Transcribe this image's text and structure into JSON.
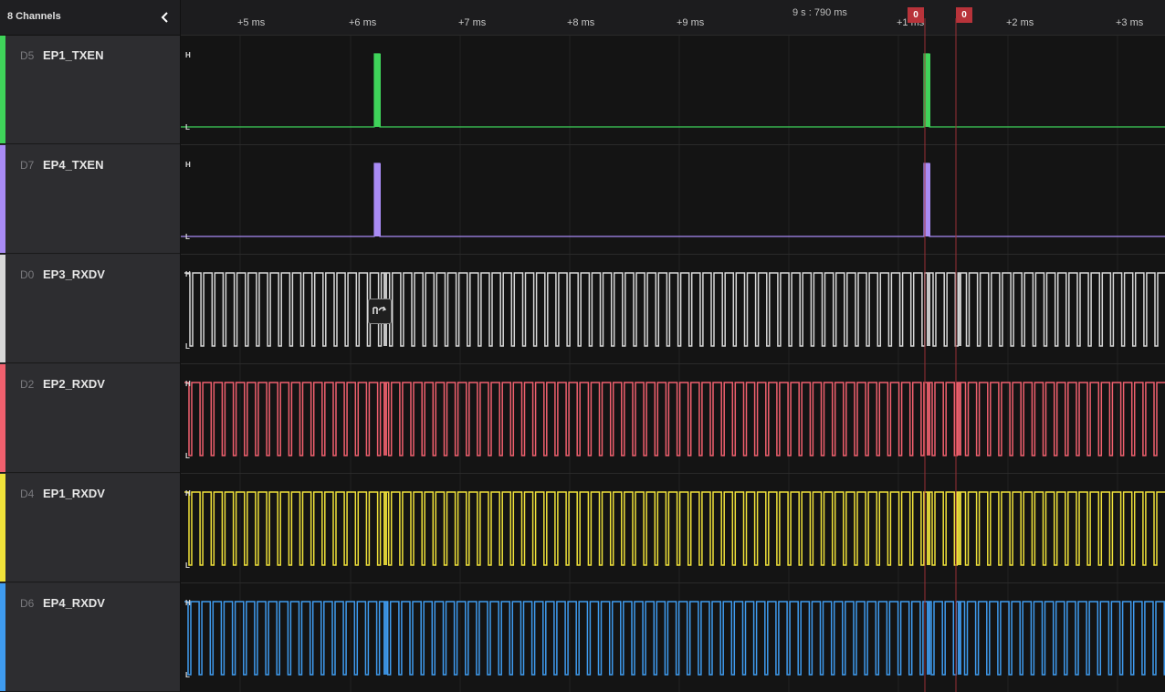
{
  "sidebar": {
    "channel_count": "8 Channels",
    "collapse_icon": "chevron-left-icon"
  },
  "channels": [
    {
      "id": "D5",
      "name": "EP1_TXEN",
      "color": "#3fd45a",
      "level_high": "H",
      "level_low": "L"
    },
    {
      "id": "D7",
      "name": "EP4_TXEN",
      "color": "#a98bf5",
      "level_high": "H",
      "level_low": "L"
    },
    {
      "id": "D0",
      "name": "EP3_RXDV",
      "color": "#d8d8d8",
      "level_high": "H",
      "level_low": "L"
    },
    {
      "id": "D2",
      "name": "EP2_RXDV",
      "color": "#f0606e",
      "level_high": "H",
      "level_low": "L"
    },
    {
      "id": "D4",
      "name": "EP1_RXDV",
      "color": "#f0e23a",
      "level_high": "H",
      "level_low": "L"
    },
    {
      "id": "D6",
      "name": "EP4_RXDV",
      "color": "#3f9bef",
      "level_high": "H",
      "level_low": "L"
    }
  ],
  "ruler": {
    "timestamp": "9 s : 790 ms",
    "ticks": [
      "+5 ms",
      "+6 ms",
      "+7 ms",
      "+8 ms",
      "+9 ms",
      "+1 ms",
      "+2 ms",
      "+3 ms"
    ]
  },
  "markers": [
    {
      "label": "0",
      "color": "#b8333a"
    },
    {
      "label": "0",
      "color": "#b8333a"
    }
  ],
  "tools": {
    "zoom_icon": "measure-tool-icon"
  }
}
